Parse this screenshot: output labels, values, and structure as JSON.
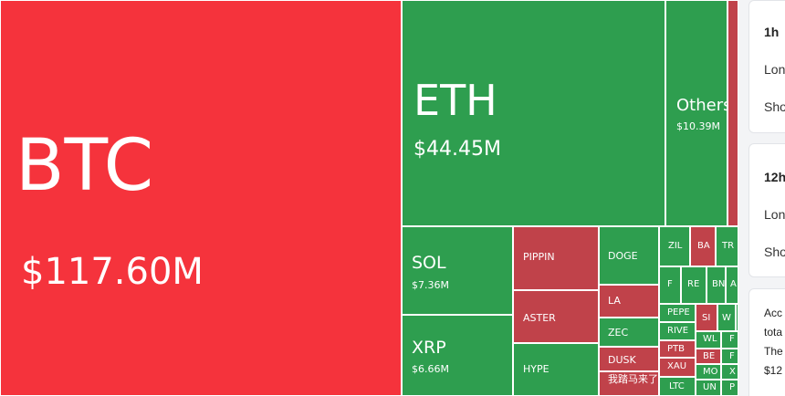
{
  "treemap": {
    "colors": {
      "up": "#2e9e4f",
      "down": "#c0424a",
      "down_bright": "#f5333c"
    },
    "tiles": [
      {
        "id": "btc",
        "symbol": "BTC",
        "value": "$117.60M",
        "trend": "down_bright"
      },
      {
        "id": "eth",
        "symbol": "ETH",
        "value": "$44.45M",
        "trend": "up"
      },
      {
        "id": "others",
        "symbol": "Others",
        "value": "$10.39M",
        "trend": "up"
      },
      {
        "id": "sol",
        "symbol": "SOL",
        "value": "$7.36M",
        "trend": "up"
      },
      {
        "id": "xrp",
        "symbol": "XRP",
        "value": "$6.66M",
        "trend": "up"
      },
      {
        "id": "pippin",
        "symbol": "PIPPIN",
        "value": "",
        "trend": "down"
      },
      {
        "id": "aster",
        "symbol": "ASTER",
        "value": "",
        "trend": "down"
      },
      {
        "id": "hype",
        "symbol": "HYPE",
        "value": "",
        "trend": "up"
      },
      {
        "id": "doge",
        "symbol": "DOGE",
        "value": "",
        "trend": "up"
      },
      {
        "id": "la",
        "symbol": "LA",
        "value": "",
        "trend": "down"
      },
      {
        "id": "zec",
        "symbol": "ZEC",
        "value": "",
        "trend": "up"
      },
      {
        "id": "dusk",
        "symbol": "DUSK",
        "value": "",
        "trend": "down"
      },
      {
        "id": "cn-token",
        "symbol": "我踏马来了",
        "value": "",
        "trend": "down"
      },
      {
        "id": "zil",
        "symbol": "ZIL",
        "value": "",
        "trend": "up"
      },
      {
        "id": "ba",
        "symbol": "BA",
        "value": "",
        "trend": "down"
      },
      {
        "id": "tr",
        "symbol": "TR",
        "value": "",
        "trend": "up"
      },
      {
        "id": "f",
        "symbol": "F",
        "value": "",
        "trend": "up"
      },
      {
        "id": "re",
        "symbol": "RE",
        "value": "",
        "trend": "up"
      },
      {
        "id": "bn",
        "symbol": "BN",
        "value": "",
        "trend": "up"
      },
      {
        "id": "a",
        "symbol": "A",
        "value": "",
        "trend": "up"
      },
      {
        "id": "pepe",
        "symbol": "PEPE",
        "value": "",
        "trend": "up"
      },
      {
        "id": "rive",
        "symbol": "RIVE",
        "value": "",
        "trend": "up"
      },
      {
        "id": "ptb",
        "symbol": "PTB",
        "value": "",
        "trend": "down"
      },
      {
        "id": "xau",
        "symbol": "XAU",
        "value": "",
        "trend": "down"
      },
      {
        "id": "ltc",
        "symbol": "LTC",
        "value": "",
        "trend": "up"
      },
      {
        "id": "si",
        "symbol": "SI",
        "value": "",
        "trend": "down"
      },
      {
        "id": "w",
        "symbol": "W",
        "value": "",
        "trend": "up"
      },
      {
        "id": "wl",
        "symbol": "WL",
        "value": "",
        "trend": "up"
      },
      {
        "id": "be",
        "symbol": "BE",
        "value": "",
        "trend": "down"
      },
      {
        "id": "mo",
        "symbol": "MO",
        "value": "",
        "trend": "up"
      },
      {
        "id": "un",
        "symbol": "UN",
        "value": "",
        "trend": "up"
      },
      {
        "id": "f2",
        "symbol": "F",
        "value": "",
        "trend": "up"
      },
      {
        "id": "f3",
        "symbol": "F",
        "value": "",
        "trend": "up"
      },
      {
        "id": "x",
        "symbol": "X",
        "value": "",
        "trend": "up"
      },
      {
        "id": "p",
        "symbol": "P",
        "value": "",
        "trend": "up"
      },
      {
        "id": "top-strip",
        "symbol": "",
        "value": "",
        "trend": "down"
      },
      {
        "id": "s1",
        "symbol": "",
        "value": "",
        "trend": "up"
      },
      {
        "id": "s2",
        "symbol": "",
        "value": "",
        "trend": "up"
      },
      {
        "id": "s3",
        "symbol": "",
        "value": "",
        "trend": "down"
      },
      {
        "id": "s4",
        "symbol": "",
        "value": "",
        "trend": "up"
      },
      {
        "id": "s5",
        "symbol": "",
        "value": "",
        "trend": "down"
      },
      {
        "id": "s6",
        "symbol": "",
        "value": "",
        "trend": "up"
      }
    ]
  },
  "side": {
    "card1": {
      "title": "1h",
      "line1": "Lon",
      "line2": "Sho"
    },
    "card2": {
      "title": "12h",
      "line1": "Lon",
      "line2": "Sho"
    },
    "card3": {
      "line1": "Acc",
      "line2": "tota",
      "line3": "The",
      "line4": "$12"
    }
  }
}
